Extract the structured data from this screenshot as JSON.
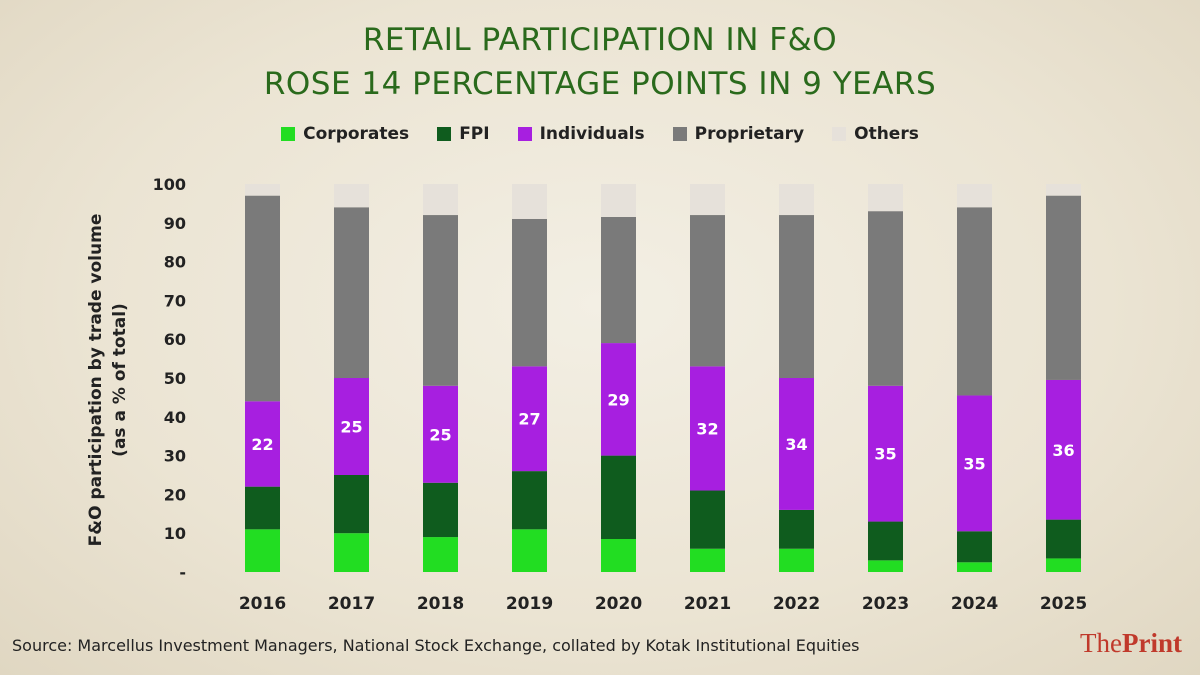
{
  "header": {
    "title_line1": "RETAIL PARTICIPATION IN F&O",
    "title_line2": "ROSE 14 PERCENTAGE POINTS IN 9 YEARS"
  },
  "legend": [
    {
      "label": "Corporates",
      "color": "#22dd22"
    },
    {
      "label": "FPI",
      "color": "#0f5c1e"
    },
    {
      "label": "Individuals",
      "color": "#a71fe0"
    },
    {
      "label": "Proprietary",
      "color": "#7a7a7a"
    },
    {
      "label": "Others",
      "color": "#e6e1da"
    }
  ],
  "y_axis": {
    "line1": "F&O participation by trade volume",
    "line2": "(as a % of total)"
  },
  "chart_data": {
    "type": "bar",
    "stacked": true,
    "title": "RETAIL PARTICIPATION IN F&O ROSE 14 PERCENTAGE POINTS IN 9 YEARS",
    "xlabel": "",
    "ylabel": "F&O participation by trade volume (as a % of total)",
    "ylim": [
      0,
      100
    ],
    "yticks": [
      "-",
      "10",
      "20",
      "30",
      "40",
      "50",
      "60",
      "70",
      "80",
      "90",
      "100"
    ],
    "categories": [
      "2016",
      "2017",
      "2018",
      "2019",
      "2020",
      "2021",
      "2022",
      "2023",
      "2024",
      "2025"
    ],
    "series": [
      {
        "name": "Corporates",
        "color": "#22dd22",
        "values": [
          11,
          10,
          9,
          11,
          8.5,
          6,
          6,
          3,
          2.5,
          3.5
        ]
      },
      {
        "name": "FPI",
        "color": "#0f5c1e",
        "values": [
          11,
          15,
          14,
          15,
          21.5,
          15,
          10,
          10,
          8,
          10
        ]
      },
      {
        "name": "Individuals",
        "color": "#a71fe0",
        "values": [
          22,
          25,
          25,
          27,
          29,
          32,
          34,
          35,
          35,
          36
        ]
      },
      {
        "name": "Proprietary",
        "color": "#7a7a7a",
        "values": [
          53,
          44,
          44,
          38,
          32.5,
          39,
          42,
          45,
          48.5,
          47.5
        ]
      },
      {
        "name": "Others",
        "color": "#e6e1da",
        "values": [
          3,
          6,
          8,
          9,
          8.5,
          8,
          8,
          7,
          6,
          3
        ]
      }
    ],
    "data_labels": {
      "series": "Individuals",
      "values": [
        "22",
        "25",
        "25",
        "27",
        "29",
        "32",
        "34",
        "35",
        "35",
        "36"
      ]
    }
  },
  "footer": {
    "source": "Source: Marcellus Investment Managers, National Stock Exchange, collated by Kotak Institutional Equities"
  },
  "brand": {
    "part1": "The",
    "part2": "Print"
  }
}
